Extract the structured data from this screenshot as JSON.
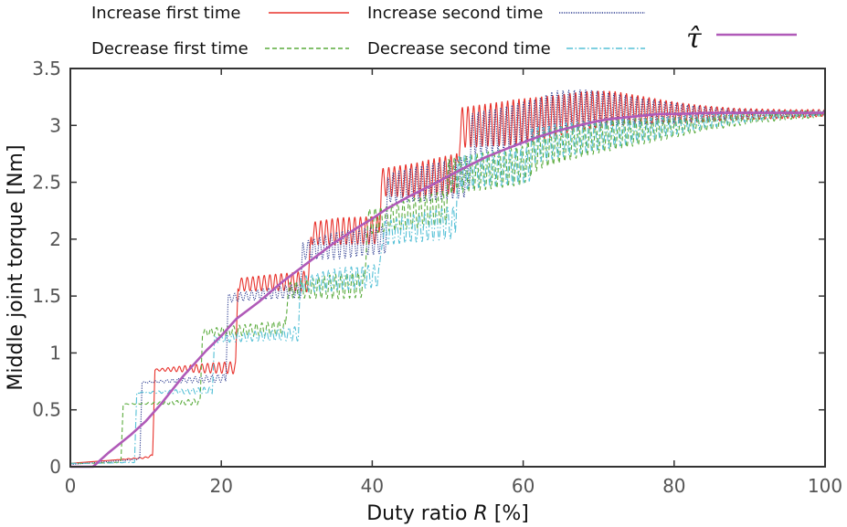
{
  "chart_data": {
    "type": "line",
    "title": "",
    "xlabel": "Duty ratio",
    "xlabel_var": "R",
    "xlabel_unit": "[%]",
    "ylabel": "Middle joint torque  [Nm]",
    "xlim": [
      0,
      100
    ],
    "ylim": [
      0,
      3.5
    ],
    "xticks": [
      0,
      20,
      40,
      60,
      80,
      100
    ],
    "xtick_labels": [
      "0",
      "20",
      "40",
      "60",
      "80",
      "100"
    ],
    "yticks": [
      0,
      0.5,
      1,
      1.5,
      2,
      2.5,
      3,
      3.5
    ],
    "ytick_labels": [
      "0",
      "0.5",
      "1",
      "1.5",
      "2",
      "2.5",
      "3",
      "3.5"
    ],
    "grid": false,
    "legend_position": "top",
    "series": [
      {
        "name": "Increase first time",
        "color": "#e8322c",
        "style": "solid",
        "oscillation": [
          0,
          0,
          0.01,
          0.04,
          0.06,
          0.08,
          0.12,
          0.12,
          0.16,
          0.18,
          0.2,
          0.18,
          0.16,
          0.12,
          0.08,
          0.05,
          0.04,
          0.03
        ],
        "points": [
          [
            0,
            0.03
          ],
          [
            2,
            0.04
          ],
          [
            4,
            0.05
          ],
          [
            6,
            0.06
          ],
          [
            8,
            0.07
          ],
          [
            10,
            0.08
          ],
          [
            10.9,
            0.1
          ],
          [
            11.2,
            0.85
          ],
          [
            15,
            0.86
          ],
          [
            20,
            0.87
          ],
          [
            21.9,
            0.87
          ],
          [
            22.2,
            1.6
          ],
          [
            27,
            1.62
          ],
          [
            31.6,
            1.63
          ],
          [
            31.9,
            2.05
          ],
          [
            36,
            2.07
          ],
          [
            40.9,
            2.08
          ],
          [
            41.2,
            2.5
          ],
          [
            46,
            2.52
          ],
          [
            51.3,
            2.58
          ],
          [
            51.6,
            2.98
          ],
          [
            58,
            3.02
          ],
          [
            64,
            3.08
          ],
          [
            68,
            3.13
          ],
          [
            72,
            3.15
          ],
          [
            76,
            3.13
          ],
          [
            80,
            3.11
          ],
          [
            85,
            3.1
          ],
          [
            90,
            3.1
          ],
          [
            95,
            3.1
          ],
          [
            100,
            3.11
          ]
        ]
      },
      {
        "name": "Increase second time",
        "color": "#2a3a8f",
        "style": "dotted",
        "oscillation": [
          0,
          0,
          0.01,
          0.03,
          0.04,
          0.06,
          0.12,
          0.12,
          0.16,
          0.18,
          0.19,
          0.18,
          0.15,
          0.11,
          0.07,
          0.04,
          0.03,
          0.02
        ],
        "points": [
          [
            0,
            0.02
          ],
          [
            2,
            0.03
          ],
          [
            4,
            0.04
          ],
          [
            6,
            0.05
          ],
          [
            8,
            0.06
          ],
          [
            9.2,
            0.07
          ],
          [
            9.5,
            0.74
          ],
          [
            15,
            0.76
          ],
          [
            20.6,
            0.78
          ],
          [
            20.9,
            1.48
          ],
          [
            26,
            1.52
          ],
          [
            30.5,
            1.55
          ],
          [
            30.8,
            1.9
          ],
          [
            36,
            1.95
          ],
          [
            41.8,
            2.0
          ],
          [
            42.1,
            2.45
          ],
          [
            48,
            2.5
          ],
          [
            52.8,
            2.55
          ],
          [
            53.1,
            2.92
          ],
          [
            58,
            2.98
          ],
          [
            62,
            3.05
          ],
          [
            64,
            3.12
          ],
          [
            68,
            3.15
          ],
          [
            72,
            3.14
          ],
          [
            76,
            3.12
          ],
          [
            80,
            3.11
          ],
          [
            85,
            3.1
          ],
          [
            90,
            3.1
          ],
          [
            95,
            3.1
          ],
          [
            100,
            3.11
          ]
        ]
      },
      {
        "name": "Decrease first time",
        "color": "#5aab3c",
        "style": "dashed",
        "oscillation": [
          0,
          0,
          0.01,
          0.03,
          0.05,
          0.07,
          0.11,
          0.11,
          0.14,
          0.16,
          0.17,
          0.16,
          0.14,
          0.11,
          0.07,
          0.05,
          0.04,
          0.03
        ],
        "points": [
          [
            0,
            0.03
          ],
          [
            3,
            0.03
          ],
          [
            6.7,
            0.04
          ],
          [
            7.0,
            0.55
          ],
          [
            12,
            0.56
          ],
          [
            17.2,
            0.57
          ],
          [
            17.5,
            1.18
          ],
          [
            23,
            1.2
          ],
          [
            28.5,
            1.22
          ],
          [
            28.8,
            1.55
          ],
          [
            34,
            1.58
          ],
          [
            39.0,
            1.6
          ],
          [
            39.3,
            2.15
          ],
          [
            45,
            2.22
          ],
          [
            49.8,
            2.28
          ],
          [
            50.1,
            2.55
          ],
          [
            55,
            2.6
          ],
          [
            60,
            2.65
          ],
          [
            62,
            2.78
          ],
          [
            66,
            2.85
          ],
          [
            70,
            2.9
          ],
          [
            76,
            2.95
          ],
          [
            80,
            2.98
          ],
          [
            85,
            3.02
          ],
          [
            90,
            3.06
          ],
          [
            95,
            3.09
          ],
          [
            100,
            3.1
          ]
        ]
      },
      {
        "name": "Decrease second time",
        "color": "#55c0d6",
        "style": "dashdot",
        "oscillation": [
          0,
          0,
          0.01,
          0.03,
          0.04,
          0.06,
          0.1,
          0.1,
          0.13,
          0.15,
          0.16,
          0.15,
          0.13,
          0.1,
          0.07,
          0.05,
          0.03,
          0.02
        ],
        "points": [
          [
            0,
            0.03
          ],
          [
            4,
            0.03
          ],
          [
            8.5,
            0.04
          ],
          [
            8.8,
            0.65
          ],
          [
            14,
            0.66
          ],
          [
            18.8,
            0.67
          ],
          [
            19.1,
            1.12
          ],
          [
            25,
            1.15
          ],
          [
            30.2,
            1.17
          ],
          [
            30.5,
            1.6
          ],
          [
            36,
            1.65
          ],
          [
            41.0,
            1.68
          ],
          [
            41.3,
            2.05
          ],
          [
            46,
            2.1
          ],
          [
            51.0,
            2.15
          ],
          [
            51.3,
            2.58
          ],
          [
            56,
            2.62
          ],
          [
            60.8,
            2.65
          ],
          [
            61.1,
            2.82
          ],
          [
            66,
            2.88
          ],
          [
            72,
            2.93
          ],
          [
            78,
            2.98
          ],
          [
            82,
            3.02
          ],
          [
            86,
            3.05
          ],
          [
            90,
            3.08
          ],
          [
            95,
            3.1
          ],
          [
            100,
            3.11
          ]
        ]
      },
      {
        "name": "τ̂",
        "color": "#b05ab8",
        "style": "solid-thick",
        "oscillation": [],
        "points": [
          [
            0,
            0.0
          ],
          [
            3,
            0.0
          ],
          [
            5,
            0.12
          ],
          [
            8,
            0.28
          ],
          [
            10,
            0.4
          ],
          [
            12,
            0.55
          ],
          [
            15,
            0.8
          ],
          [
            18,
            1.02
          ],
          [
            20,
            1.15
          ],
          [
            22,
            1.3
          ],
          [
            25,
            1.45
          ],
          [
            28,
            1.62
          ],
          [
            30,
            1.72
          ],
          [
            32,
            1.82
          ],
          [
            35,
            1.97
          ],
          [
            38,
            2.1
          ],
          [
            40,
            2.18
          ],
          [
            42,
            2.27
          ],
          [
            45,
            2.38
          ],
          [
            48,
            2.48
          ],
          [
            50,
            2.55
          ],
          [
            52,
            2.62
          ],
          [
            55,
            2.72
          ],
          [
            58,
            2.8
          ],
          [
            60,
            2.85
          ],
          [
            62,
            2.9
          ],
          [
            65,
            2.96
          ],
          [
            68,
            3.01
          ],
          [
            70,
            3.04
          ],
          [
            72,
            3.06
          ],
          [
            75,
            3.08
          ],
          [
            78,
            3.1
          ],
          [
            80,
            3.1
          ],
          [
            85,
            3.11
          ],
          [
            90,
            3.11
          ],
          [
            95,
            3.11
          ],
          [
            100,
            3.11
          ]
        ]
      }
    ]
  }
}
